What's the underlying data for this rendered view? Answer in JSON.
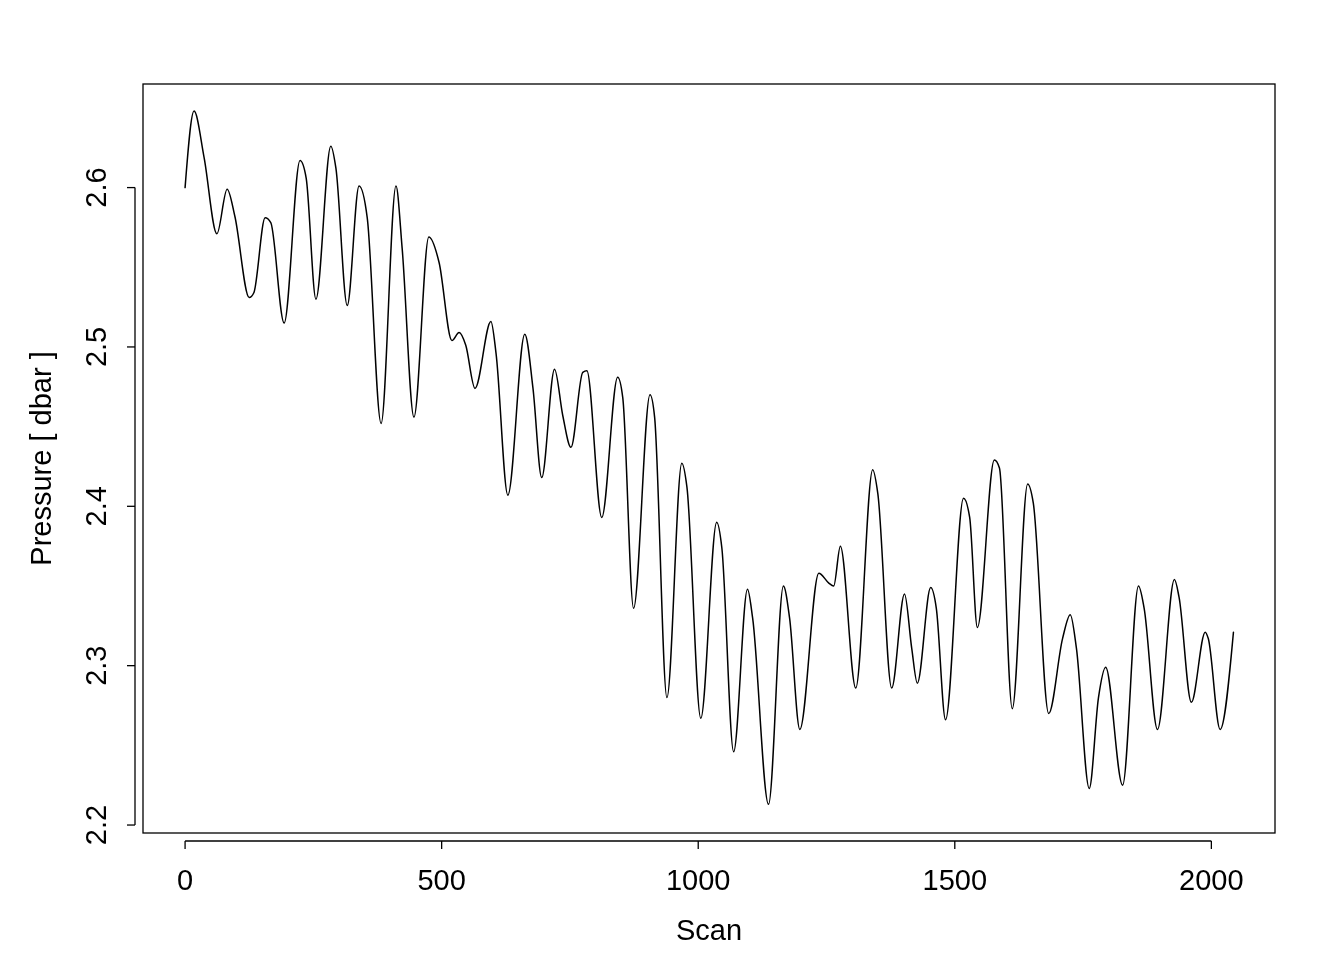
{
  "chart_data": {
    "type": "line",
    "xlabel": "Scan",
    "ylabel": "Pressure [ dbar ]",
    "xlim": [
      -82,
      2124
    ],
    "ylim": [
      2.195,
      2.665
    ],
    "xticks": [
      0,
      500,
      1000,
      1500,
      2000
    ],
    "yticks": [
      2.2,
      2.3,
      2.4,
      2.5,
      2.6
    ],
    "grid": false,
    "marker": "none",
    "line_style": "solid",
    "series": [
      {
        "color": "#000000",
        "x": [
          0,
          17.5,
          37,
          62,
          82,
          97,
          125,
          134,
          156,
          167,
          193,
          224,
          236,
          255,
          284,
          294,
          316,
          339,
          355,
          382,
          411,
          423,
          446,
          475,
          495,
          520,
          534,
          547,
          565,
          596,
          606,
          629,
          662,
          678,
          695,
          720,
          736,
          752,
          775,
          783,
          812,
          843,
          853,
          874,
          906,
          915,
          939,
          968,
          978,
          1005,
          1036,
          1046,
          1069,
          1096,
          1106,
          1137,
          1166,
          1178,
          1198,
          1235,
          1254,
          1264,
          1277,
          1307,
          1340,
          1350,
          1377,
          1402,
          1416,
          1427,
          1453,
          1464,
          1482,
          1517,
          1529,
          1544,
          1577,
          1587,
          1612,
          1642,
          1653,
          1683,
          1710,
          1725,
          1737,
          1762,
          1780,
          1794,
          1827,
          1858,
          1869,
          1895,
          1928,
          1937,
          1961,
          1988,
          1994,
          2017,
          2043
        ],
        "values": [
          2.6,
          2.648,
          2.619,
          2.571,
          2.599,
          2.582,
          2.531,
          2.534,
          2.581,
          2.578,
          2.515,
          2.617,
          2.606,
          2.53,
          2.626,
          2.612,
          2.526,
          2.601,
          2.581,
          2.452,
          2.601,
          2.562,
          2.456,
          2.569,
          2.553,
          2.504,
          2.509,
          2.501,
          2.474,
          2.516,
          2.496,
          2.407,
          2.508,
          2.474,
          2.418,
          2.486,
          2.457,
          2.437,
          2.484,
          2.485,
          2.393,
          2.481,
          2.468,
          2.336,
          2.47,
          2.456,
          2.28,
          2.427,
          2.412,
          2.267,
          2.39,
          2.374,
          2.246,
          2.348,
          2.33,
          2.213,
          2.35,
          2.33,
          2.26,
          2.358,
          2.352,
          2.35,
          2.375,
          2.286,
          2.423,
          2.408,
          2.286,
          2.345,
          2.311,
          2.289,
          2.349,
          2.336,
          2.266,
          2.405,
          2.393,
          2.324,
          2.429,
          2.424,
          2.273,
          2.414,
          2.402,
          2.27,
          2.317,
          2.332,
          2.311,
          2.223,
          2.28,
          2.299,
          2.225,
          2.35,
          2.336,
          2.26,
          2.354,
          2.343,
          2.277,
          2.321,
          2.317,
          2.26,
          2.321
        ]
      }
    ]
  }
}
